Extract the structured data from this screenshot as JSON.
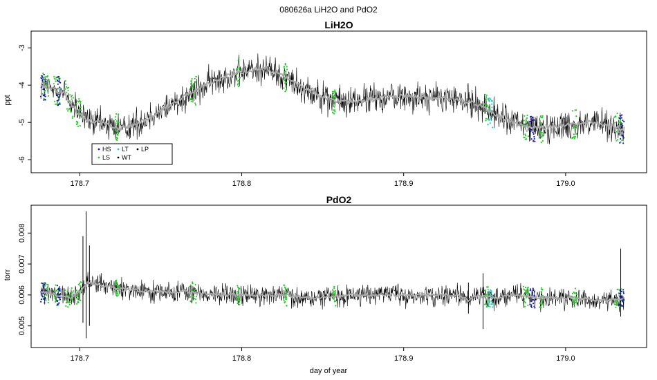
{
  "figure": {
    "suptitle": "080626a   LiH2O and PdO2",
    "xlabel": "day of year"
  },
  "colors": {
    "trace": "#000000",
    "smooth": "#aaaaaa",
    "HS": "#1a1ab0",
    "LS": "#22cc22",
    "LT": "#22cccc",
    "WT": "#000000",
    "LP": "#000000",
    "frame": "#000000"
  },
  "chart_data": [
    {
      "type": "line",
      "title": "LiH2O",
      "xlabel": "",
      "ylabel": "ppt",
      "xlim": [
        178.67,
        179.05
      ],
      "ylim": [
        -6.35,
        -2.55
      ],
      "xticks": [
        178.7,
        178.8,
        178.9,
        179.0
      ],
      "xtick_labels": [
        "178.7",
        "178.8",
        "178.9",
        "179.0"
      ],
      "yticks": [
        -6,
        -5,
        -4,
        -3
      ],
      "ytick_labels": [
        "-6",
        "-5",
        "-4",
        "-3"
      ],
      "grid": false,
      "legend": {
        "position": "bottom-left",
        "entries": [
          {
            "label": "HS",
            "color_key": "HS"
          },
          {
            "label": "LS",
            "color_key": "LS"
          },
          {
            "label": "LT",
            "color_key": "LT"
          },
          {
            "label": "WT",
            "color_key": "WT"
          },
          {
            "label": "LP",
            "color_key": "LP"
          }
        ]
      },
      "x_range_data": [
        178.676,
        179.036
      ],
      "series": [
        {
          "name": "",
          "style": "noisy-trace",
          "noise": 0.33,
          "x": [
            178.676,
            178.682,
            178.69,
            178.698,
            178.705,
            178.715,
            178.725,
            178.735,
            178.745,
            178.755,
            178.765,
            178.775,
            178.785,
            178.795,
            178.805,
            178.815,
            178.825,
            178.835,
            178.845,
            178.855,
            178.865,
            178.875,
            178.885,
            178.895,
            178.905,
            178.915,
            178.925,
            178.935,
            178.945,
            178.955,
            178.965,
            178.975,
            178.985,
            178.995,
            179.005,
            179.015,
            179.025,
            179.036
          ],
          "y": [
            -4.0,
            -4.1,
            -4.2,
            -4.7,
            -4.95,
            -5.05,
            -5.15,
            -5.05,
            -4.8,
            -4.55,
            -4.3,
            -4.05,
            -3.85,
            -3.7,
            -3.6,
            -3.55,
            -3.75,
            -4.0,
            -4.2,
            -4.4,
            -4.45,
            -4.4,
            -4.35,
            -4.3,
            -4.3,
            -4.35,
            -4.35,
            -4.4,
            -4.5,
            -4.75,
            -4.95,
            -5.1,
            -5.15,
            -5.1,
            -5.05,
            -5.0,
            -5.05,
            -5.2
          ]
        }
      ],
      "sample_marks": [
        {
          "color_key": "LS",
          "x_ranges": [
            [
              178.677,
              178.681
            ],
            [
              178.684,
              178.688
            ],
            [
              178.691,
              178.696
            ],
            [
              178.698,
              178.701
            ],
            [
              178.722,
              178.724
            ],
            [
              178.768,
              178.772
            ],
            [
              178.797,
              178.799
            ],
            [
              178.826,
              178.828
            ],
            [
              178.856,
              178.858
            ],
            [
              178.95,
              178.953
            ],
            [
              178.974,
              178.977
            ],
            [
              178.984,
              178.986
            ],
            [
              179.004,
              179.007
            ],
            [
              179.03,
              179.035
            ]
          ]
        },
        {
          "color_key": "HS",
          "x_ranges": [
            [
              178.676,
              178.679
            ],
            [
              178.686,
              178.688
            ],
            [
              178.978,
              178.981
            ],
            [
              179.033,
              179.036
            ]
          ]
        },
        {
          "color_key": "LT",
          "x_ranges": [
            [
              178.952,
              178.955
            ]
          ]
        }
      ]
    },
    {
      "type": "line",
      "title": "PdO2",
      "xlabel": "day of year",
      "ylabel": "torr",
      "xlim": [
        178.67,
        179.05
      ],
      "ylim": [
        0.0043,
        0.0089
      ],
      "xticks": [
        178.7,
        178.8,
        178.9,
        179.0
      ],
      "xtick_labels": [
        "178.7",
        "178.8",
        "178.9",
        "179.0"
      ],
      "yticks": [
        0.005,
        0.006,
        0.007,
        0.008
      ],
      "ytick_labels": [
        "0.005",
        "0.006",
        "0.007",
        "0.008"
      ],
      "grid": false,
      "x_range_data": [
        178.676,
        179.036
      ],
      "series": [
        {
          "name": "",
          "style": "noisy-trace",
          "noise": 0.00028,
          "x": [
            178.676,
            178.685,
            178.695,
            178.7,
            178.705,
            178.715,
            178.725,
            178.745,
            178.765,
            178.785,
            178.805,
            178.825,
            178.845,
            178.865,
            178.885,
            178.905,
            178.925,
            178.935,
            178.94,
            178.945,
            178.955,
            178.965,
            178.985,
            179.005,
            179.025,
            179.036
          ],
          "y": [
            0.0061,
            0.006,
            0.0059,
            0.0061,
            0.0064,
            0.0063,
            0.0062,
            0.0061,
            0.0061,
            0.006,
            0.006,
            0.006,
            0.0059,
            0.006,
            0.006,
            0.006,
            0.006,
            0.006,
            0.0058,
            0.006,
            0.0059,
            0.006,
            0.0059,
            0.0059,
            0.0058,
            0.0059
          ]
        }
      ],
      "spikes": [
        {
          "x": 178.702,
          "y_high": 0.0079,
          "y_low": 0.0051
        },
        {
          "x": 178.704,
          "y_high": 0.0087,
          "y_low": 0.0046
        },
        {
          "x": 178.706,
          "y_high": 0.0076,
          "y_low": 0.005
        },
        {
          "x": 178.94,
          "y_high": 0.0064,
          "y_low": 0.0054
        },
        {
          "x": 178.949,
          "y_high": 0.0067,
          "y_low": 0.0049
        },
        {
          "x": 179.034,
          "y_high": 0.0075,
          "y_low": 0.0053
        }
      ],
      "sample_marks": [
        {
          "color_key": "LS",
          "x_ranges": [
            [
              178.677,
              178.681
            ],
            [
              178.684,
              178.688
            ],
            [
              178.691,
              178.696
            ],
            [
              178.698,
              178.701
            ],
            [
              178.722,
              178.724
            ],
            [
              178.768,
              178.772
            ],
            [
              178.797,
              178.799
            ],
            [
              178.826,
              178.828
            ],
            [
              178.856,
              178.858
            ],
            [
              178.95,
              178.953
            ],
            [
              178.974,
              178.977
            ],
            [
              178.984,
              178.986
            ],
            [
              179.004,
              179.007
            ],
            [
              179.03,
              179.035
            ]
          ]
        },
        {
          "color_key": "HS",
          "x_ranges": [
            [
              178.676,
              178.679
            ],
            [
              178.686,
              178.688
            ],
            [
              178.978,
              178.981
            ],
            [
              179.033,
              179.036
            ]
          ]
        },
        {
          "color_key": "LT",
          "x_ranges": [
            [
              178.952,
              178.955
            ]
          ]
        }
      ]
    }
  ]
}
